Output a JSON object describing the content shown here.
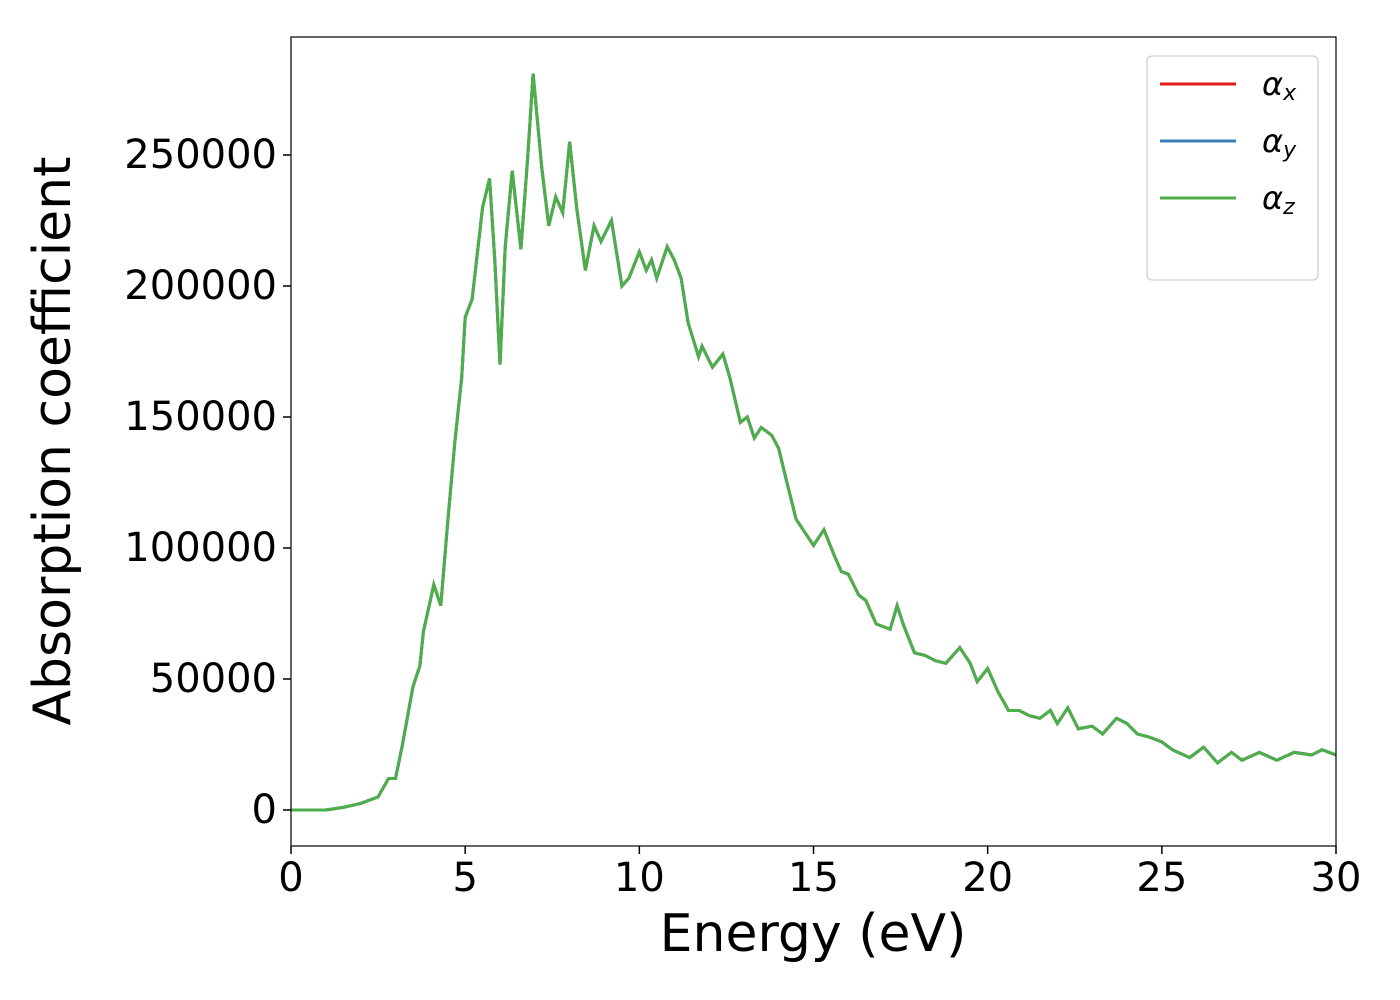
{
  "chart_data": {
    "type": "line",
    "xlabel": "Energy (eV)",
    "ylabel": "Absorption coefficient",
    "x": [
      0,
      0.5,
      1,
      1.5,
      2,
      2.3,
      2.5,
      2.8,
      3.0,
      3.2,
      3.5,
      3.7,
      3.8,
      4.1,
      4.3,
      4.5,
      4.7,
      4.9,
      5.0,
      5.2,
      5.5,
      5.7,
      5.85,
      6.0,
      6.15,
      6.35,
      6.6,
      6.8,
      6.95,
      7.2,
      7.4,
      7.6,
      7.8,
      8.0,
      8.2,
      8.45,
      8.7,
      8.9,
      9.2,
      9.5,
      9.7,
      10.0,
      10.2,
      10.35,
      10.5,
      10.8,
      11.0,
      11.2,
      11.4,
      11.7,
      11.8,
      12.1,
      12.4,
      12.6,
      12.9,
      13.1,
      13.3,
      13.5,
      13.8,
      14.0,
      14.2,
      14.5,
      14.8,
      15.0,
      15.3,
      15.6,
      15.8,
      16.0,
      16.3,
      16.5,
      16.8,
      17.0,
      17.2,
      17.4,
      17.6,
      17.9,
      18.2,
      18.5,
      18.8,
      19.2,
      19.5,
      19.7,
      20.0,
      20.3,
      20.6,
      20.9,
      21.2,
      21.5,
      21.8,
      22.0,
      22.3,
      22.6,
      23.0,
      23.3,
      23.7,
      24.0,
      24.3,
      24.6,
      25.0,
      25.3,
      25.8,
      26.2,
      26.6,
      27.0,
      27.3,
      27.8,
      28.3,
      28.8,
      29.3,
      29.6,
      30
    ],
    "series": [
      {
        "name": "αx",
        "color": "#e41a1c",
        "values": [
          0,
          0,
          0,
          1000,
          2500,
          4000,
          5000,
          12000,
          12000,
          25000,
          47000,
          55000,
          68000,
          86000,
          78000,
          110000,
          140000,
          165000,
          188000,
          195000,
          230000,
          241000,
          210000,
          170000,
          215000,
          244000,
          214000,
          250000,
          281000,
          245000,
          223000,
          234000,
          228000,
          255000,
          230000,
          206000,
          223000,
          217000,
          225000,
          200000,
          203000,
          213000,
          206000,
          210000,
          203000,
          215000,
          210000,
          203000,
          186000,
          173000,
          177000,
          169000,
          174000,
          165000,
          148000,
          150000,
          142000,
          146000,
          143000,
          138000,
          127000,
          111000,
          105000,
          101000,
          107000,
          97000,
          91000,
          90000,
          82000,
          80000,
          71000,
          70000,
          69000,
          78000,
          70000,
          60000,
          59000,
          57000,
          56000,
          62000,
          56000,
          49000,
          54000,
          45000,
          38000,
          38000,
          36000,
          35000,
          38000,
          33000,
          39000,
          31000,
          32000,
          29000,
          35000,
          33000,
          29000,
          28000,
          26000,
          23000,
          20000,
          24000,
          18000,
          22000,
          19000,
          22000,
          19000,
          22000,
          21000,
          23000,
          21000
        ]
      },
      {
        "name": "αy",
        "color": "#377eb8",
        "values": [
          0,
          0,
          0,
          1000,
          2500,
          4000,
          5000,
          12000,
          12000,
          25000,
          47000,
          55000,
          68000,
          86000,
          78000,
          110000,
          140000,
          165000,
          188000,
          195000,
          230000,
          241000,
          210000,
          170000,
          215000,
          244000,
          214000,
          250000,
          281000,
          245000,
          223000,
          234000,
          228000,
          255000,
          230000,
          206000,
          223000,
          217000,
          225000,
          200000,
          203000,
          213000,
          206000,
          210000,
          203000,
          215000,
          210000,
          203000,
          186000,
          173000,
          177000,
          169000,
          174000,
          165000,
          148000,
          150000,
          142000,
          146000,
          143000,
          138000,
          127000,
          111000,
          105000,
          101000,
          107000,
          97000,
          91000,
          90000,
          82000,
          80000,
          71000,
          70000,
          69000,
          78000,
          70000,
          60000,
          59000,
          57000,
          56000,
          62000,
          56000,
          49000,
          54000,
          45000,
          38000,
          38000,
          36000,
          35000,
          38000,
          33000,
          39000,
          31000,
          32000,
          29000,
          35000,
          33000,
          29000,
          28000,
          26000,
          23000,
          20000,
          24000,
          18000,
          22000,
          19000,
          22000,
          19000,
          22000,
          21000,
          23000,
          21000
        ]
      },
      {
        "name": "αz",
        "color": "#4daf4a",
        "values": [
          0,
          0,
          0,
          1000,
          2500,
          4000,
          5000,
          12000,
          12000,
          25000,
          47000,
          55000,
          68000,
          86000,
          78000,
          110000,
          140000,
          165000,
          188000,
          195000,
          230000,
          241000,
          210000,
          170000,
          215000,
          244000,
          214000,
          250000,
          281000,
          245000,
          223000,
          234000,
          228000,
          255000,
          230000,
          206000,
          223000,
          217000,
          225000,
          200000,
          203000,
          213000,
          206000,
          210000,
          203000,
          215000,
          210000,
          203000,
          186000,
          173000,
          177000,
          169000,
          174000,
          165000,
          148000,
          150000,
          142000,
          146000,
          143000,
          138000,
          127000,
          111000,
          105000,
          101000,
          107000,
          97000,
          91000,
          90000,
          82000,
          80000,
          71000,
          70000,
          69000,
          78000,
          70000,
          60000,
          59000,
          57000,
          56000,
          62000,
          56000,
          49000,
          54000,
          45000,
          38000,
          38000,
          36000,
          35000,
          38000,
          33000,
          39000,
          31000,
          32000,
          29000,
          35000,
          33000,
          29000,
          28000,
          26000,
          23000,
          20000,
          24000,
          18000,
          22000,
          19000,
          22000,
          19000,
          22000,
          21000,
          23000,
          21000
        ]
      }
    ],
    "xlim": [
      0,
      30
    ],
    "xticks": [
      0,
      5,
      10,
      15,
      20,
      25,
      30
    ],
    "ylim": [
      -13740,
      295040
    ],
    "yticks": [
      0,
      50000,
      100000,
      150000,
      200000,
      250000
    ],
    "grid": false,
    "legend": "upper right"
  }
}
